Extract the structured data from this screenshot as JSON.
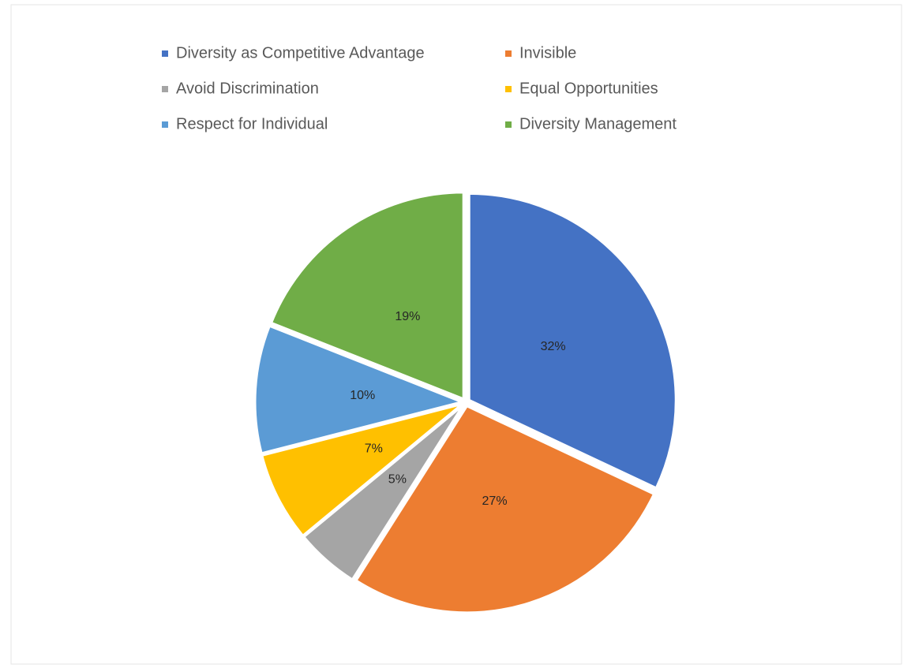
{
  "chart_data": {
    "type": "pie",
    "categories": [
      "Diversity as Competitive Advantage",
      "Invisible",
      "Avoid Discrimination",
      "Equal Opportunities",
      "Respect for Individual",
      "Diversity Management"
    ],
    "values": [
      32,
      27,
      5,
      7,
      10,
      19
    ],
    "value_labels": [
      "32%",
      "27%",
      "5%",
      "7%",
      "10%",
      "19%"
    ],
    "colors": [
      "#4472c4",
      "#ed7d31",
      "#a5a5a5",
      "#ffc000",
      "#5b9bd5",
      "#70ad47"
    ],
    "legend": "top"
  }
}
